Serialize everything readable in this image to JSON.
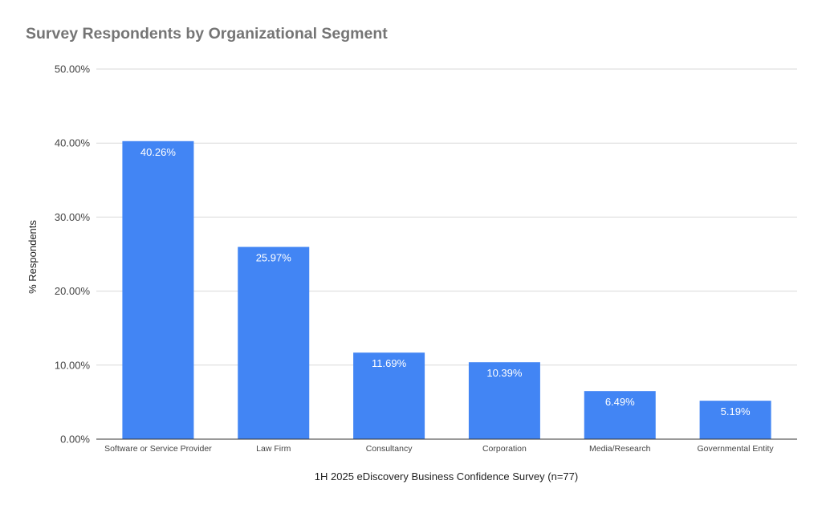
{
  "chart_data": {
    "type": "bar",
    "title": "Survey Respondents by Organizational Segment",
    "xlabel": "1H 2025 eDiscovery Business Confidence Survey (n=77)",
    "ylabel": "% Respondents",
    "categories": [
      "Software or Service Provider",
      "Law Firm",
      "Consultancy",
      "Corporation",
      "Media/Research",
      "Governmental Entity"
    ],
    "values": [
      40.26,
      25.97,
      11.69,
      10.39,
      6.49,
      5.19
    ],
    "value_labels": [
      "40.26%",
      "25.97%",
      "11.69%",
      "10.39%",
      "6.49%",
      "5.19%"
    ],
    "ylim": [
      0,
      50
    ],
    "yticks": [
      0,
      10,
      20,
      30,
      40,
      50
    ],
    "ytick_labels": [
      "0.00%",
      "10.00%",
      "20.00%",
      "30.00%",
      "40.00%",
      "50.00%"
    ],
    "grid": true,
    "legend": "none",
    "colors": {
      "bar": "#4285f4",
      "grid": "#d9d9d9",
      "axis": "#333333",
      "title": "#757575"
    }
  }
}
